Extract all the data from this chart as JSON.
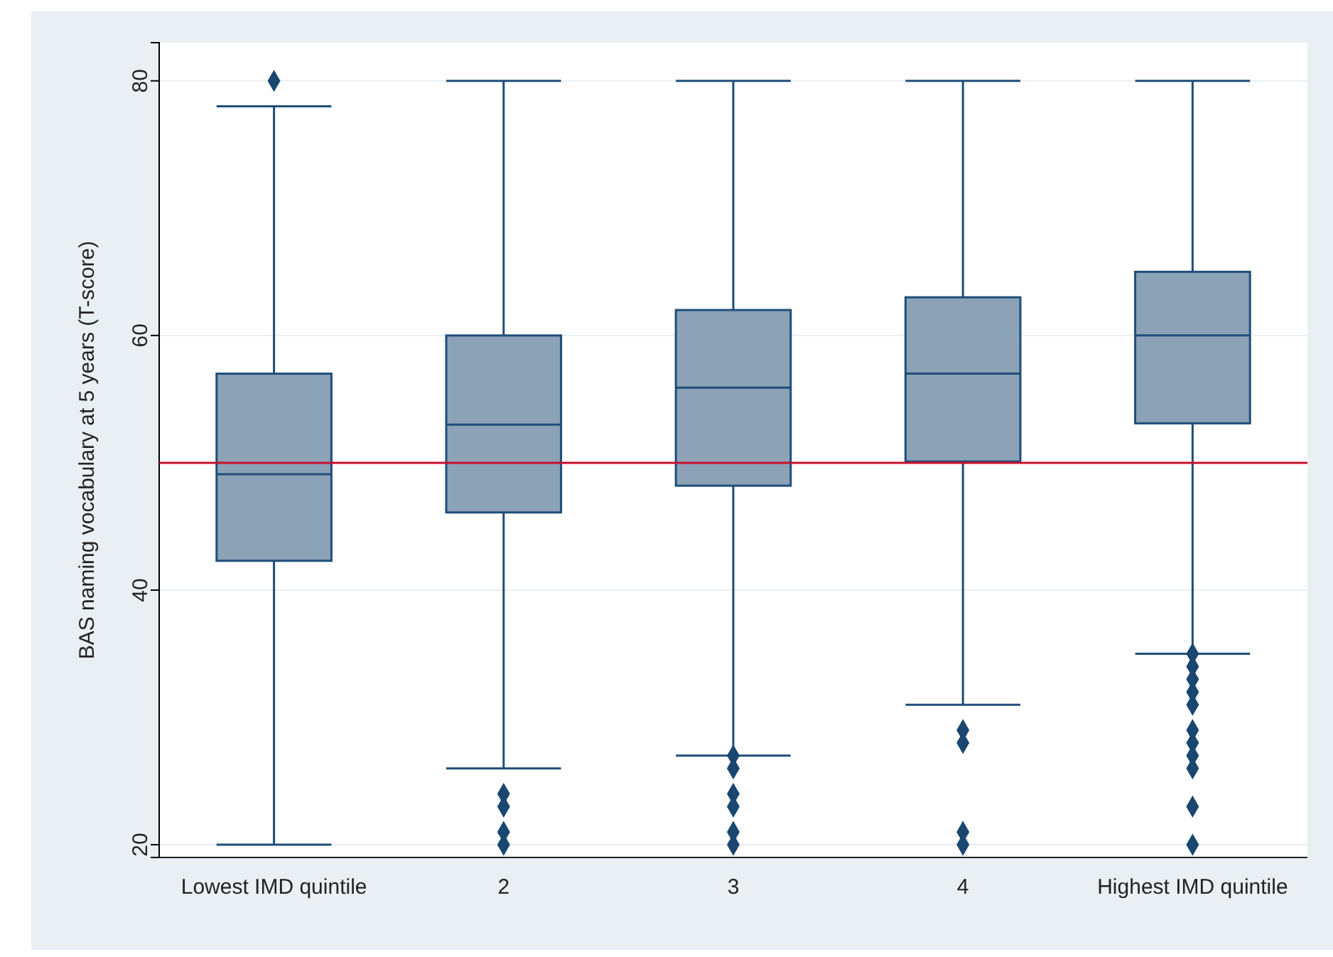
{
  "chart_data": {
    "type": "box",
    "ylabel": "BAS naming vocabulary at 5 years (T-score)",
    "categories": [
      "Lowest IMD quintile",
      "2",
      "3",
      "4",
      "Highest IMD quintile"
    ],
    "color": "#8ca2b7",
    "boxes": [
      {
        "low": 20,
        "q1": 42.3,
        "median": 49.1,
        "q3": 57,
        "high": 78,
        "outliers": [
          80
        ]
      },
      {
        "low": 26,
        "q1": 46.1,
        "median": 53,
        "q3": 60,
        "high": 80,
        "outliers": [
          24,
          23,
          21,
          20
        ]
      },
      {
        "low": 27,
        "q1": 48.2,
        "median": 55.9,
        "q3": 62,
        "high": 80,
        "outliers": [
          27,
          26,
          24,
          23,
          21,
          20
        ]
      },
      {
        "low": 31,
        "q1": 50.1,
        "median": 57,
        "q3": 63,
        "high": 80,
        "outliers": [
          29,
          28,
          21,
          20
        ]
      },
      {
        "low": 35,
        "q1": 53.1,
        "median": 60,
        "q3": 65,
        "high": 80,
        "outliers": [
          35,
          34,
          33,
          32,
          31,
          29,
          28,
          27,
          26,
          23,
          20
        ]
      }
    ],
    "ylim": [
      19,
      83
    ],
    "yticks": [
      20,
      40,
      60,
      80
    ],
    "grid": "y",
    "marker": "diamond",
    "ref_lines": [
      {
        "axis": "y",
        "value": 50,
        "color": "#c8102e"
      }
    ]
  }
}
